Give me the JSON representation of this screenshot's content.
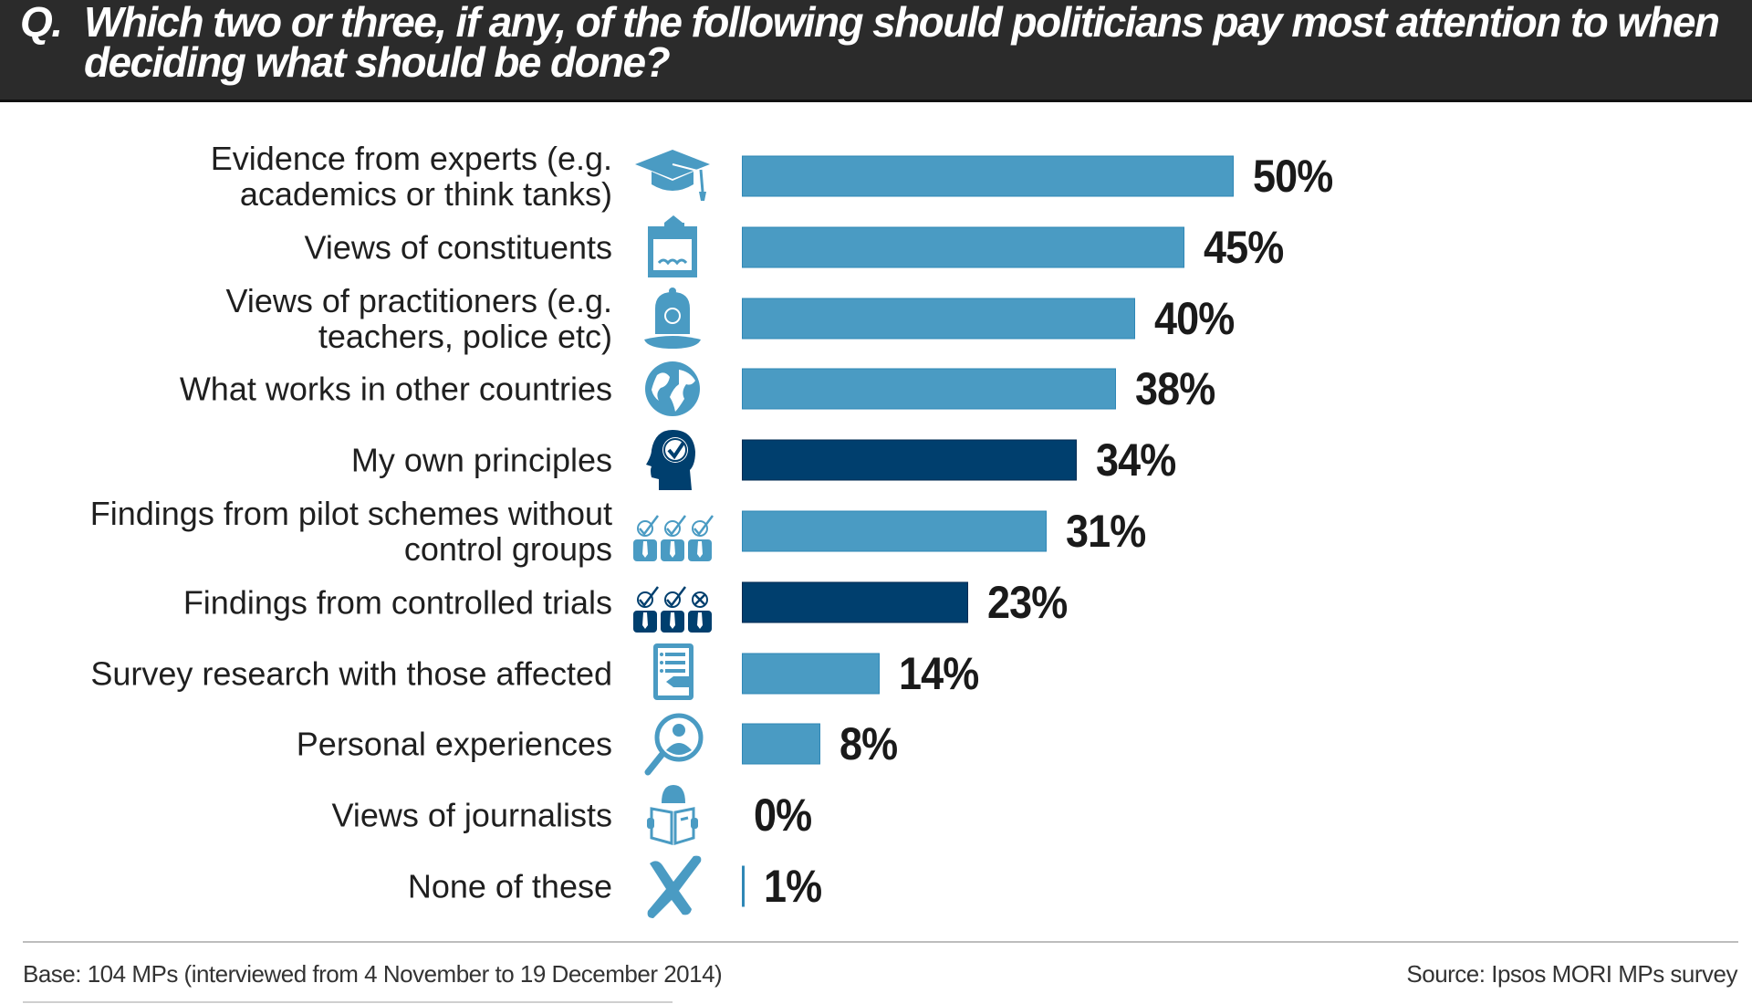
{
  "header": {
    "prefix": "Q.",
    "question": "Which two or three, if any, of the following should politicians pay most attention to when deciding what should be done?"
  },
  "colors": {
    "light_bar": "#4a9bc3",
    "dark_bar": "#003f6e",
    "header_bg": "#2b2b2b"
  },
  "chart_data": {
    "type": "bar",
    "orientation": "horizontal",
    "title": "Which two or three, if any, of the following should politicians pay most attention to when deciding what should be done?",
    "xlabel": "",
    "ylabel": "",
    "xlim": [
      0,
      50
    ],
    "grid": false,
    "legend": "none",
    "categories": [
      "Evidence from experts (e.g.\nacademics or think tanks)",
      "Views of constituents",
      "Views of practitioners (e.g.\nteachers, police etc)",
      "What works in other countries",
      "My own principles",
      "Findings from pilot schemes without\ncontrol groups",
      "Findings from controlled trials",
      "Survey research with those affected",
      "Personal experiences",
      "Views of journalists",
      "None of these"
    ],
    "values": [
      50,
      45,
      40,
      38,
      34,
      31,
      23,
      14,
      8,
      0,
      1
    ],
    "value_labels": [
      "50%",
      "45%",
      "40%",
      "38%",
      "34%",
      "31%",
      "23%",
      "14%",
      "8%",
      "0%",
      "1%"
    ],
    "highlight": [
      false,
      false,
      false,
      false,
      true,
      false,
      true,
      false,
      false,
      false,
      false
    ],
    "icons": [
      "graduation-cap-icon",
      "ballot-box-icon",
      "police-helmet-icon",
      "globe-icon",
      "head-checkmark-icon",
      "three-people-checked-icon",
      "three-people-checked-crossed-icon",
      "survey-clipboard-icon",
      "magnifier-person-icon",
      "person-reading-newspaper-icon",
      "cross-mark-icon"
    ]
  },
  "footer": {
    "base": "Base: 104 MPs (interviewed from 4 November to 19 December 2014)",
    "source": "Source: Ipsos MORI MPs survey"
  }
}
